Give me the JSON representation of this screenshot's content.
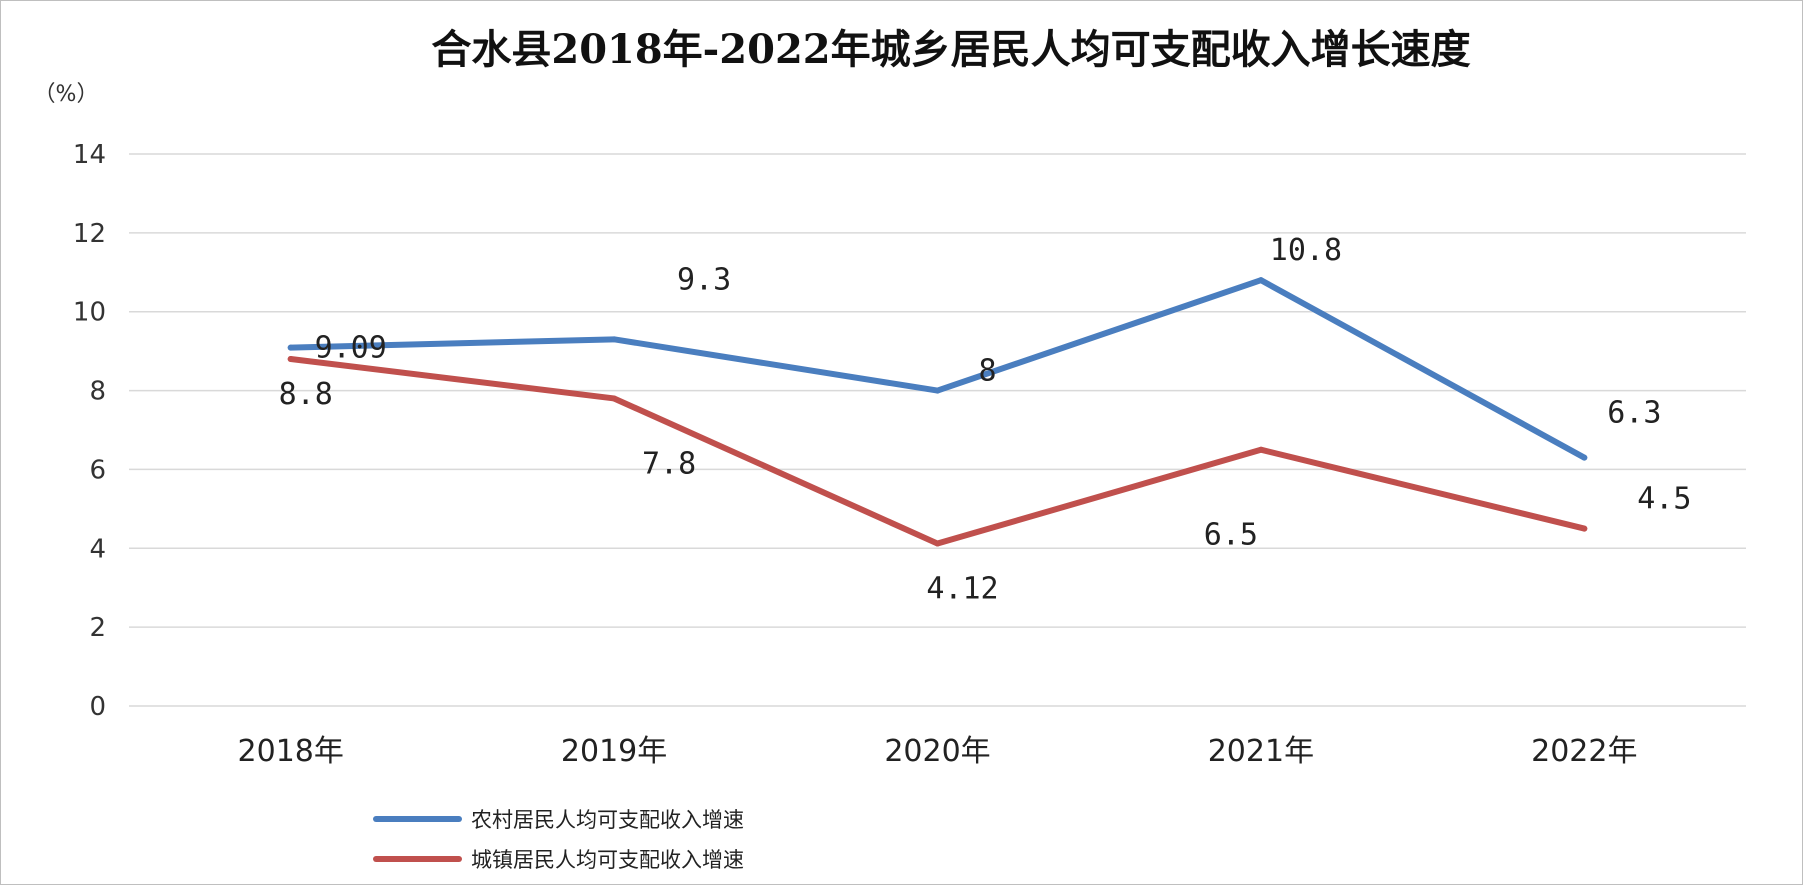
{
  "chart_data": {
    "type": "line",
    "title": "合水县2018年-2022年城乡居民人均可支配收入增长速度",
    "ylabel": "（%）",
    "xlabel": "",
    "categories": [
      "2018年",
      "2019年",
      "2020年",
      "2021年",
      "2022年"
    ],
    "ylim": [
      0,
      14
    ],
    "yticks": [
      0,
      2,
      4,
      6,
      8,
      10,
      12,
      14
    ],
    "grid": true,
    "legend_position": "bottom-left",
    "series": [
      {
        "name": "农村居民人均可支配收入增速",
        "color": "#4a7ebf",
        "values": [
          9.09,
          9.3,
          8,
          10.8,
          6.3
        ],
        "labels": [
          "9.09",
          "9.3",
          "8",
          "10.8",
          "6.3"
        ]
      },
      {
        "name": "城镇居民人均可支配收入增速",
        "color": "#c0504d",
        "values": [
          8.8,
          7.8,
          4.12,
          6.5,
          4.5
        ],
        "labels": [
          "8.8",
          "7.8",
          "4.12",
          "6.5",
          "4.5"
        ]
      }
    ]
  }
}
